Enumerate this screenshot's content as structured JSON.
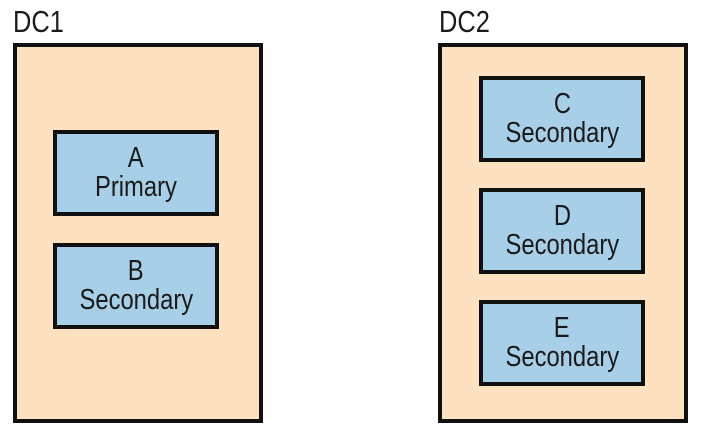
{
  "datacenters": [
    {
      "label": "DC1",
      "nodes": [
        {
          "name": "A",
          "role": "Primary"
        },
        {
          "name": "B",
          "role": "Secondary"
        }
      ]
    },
    {
      "label": "DC2",
      "nodes": [
        {
          "name": "C",
          "role": "Secondary"
        },
        {
          "name": "D",
          "role": "Secondary"
        },
        {
          "name": "E",
          "role": "Secondary"
        }
      ]
    }
  ],
  "colors": {
    "datacenter_fill": "#fde1c1",
    "node_fill": "#a8cfe8",
    "border": "#111111"
  }
}
